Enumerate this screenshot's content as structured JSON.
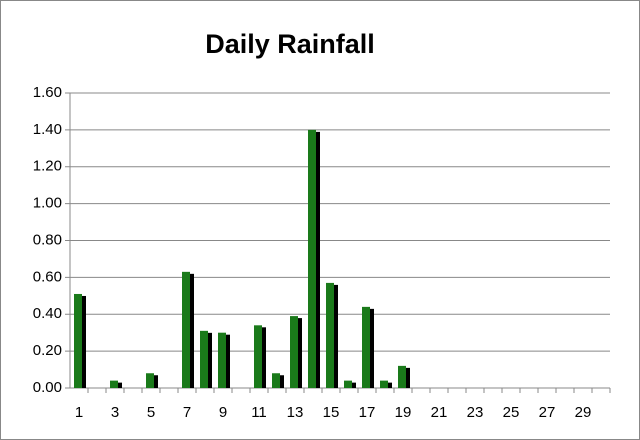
{
  "chart_data": {
    "type": "bar",
    "title": "Daily Rainfall",
    "categories": [
      "1",
      null,
      "3",
      null,
      "5",
      null,
      "7",
      null,
      "9",
      null,
      "11",
      null,
      "13",
      null,
      "15",
      null,
      "17",
      null,
      "19",
      null,
      "21",
      null,
      "23",
      null,
      "25",
      null,
      "27",
      null,
      "29",
      null
    ],
    "values": [
      0.51,
      0,
      0.04,
      0,
      0.08,
      0,
      0.63,
      0.31,
      0.3,
      0,
      0.34,
      0.08,
      0.39,
      1.4,
      0.57,
      0.04,
      0.44,
      0.04,
      0.12,
      0,
      0,
      0,
      0,
      0,
      0,
      0,
      0,
      0,
      0,
      0
    ],
    "color": "#1a7a1a",
    "shadow_color": "#000000",
    "ylim": [
      0,
      1.6
    ],
    "yticks": [
      {
        "value": 0,
        "label": "0.00"
      },
      {
        "value": 0.2,
        "label": "0.20"
      },
      {
        "value": 0.4,
        "label": "0.40"
      },
      {
        "value": 0.6,
        "label": "0.60"
      },
      {
        "value": 0.8,
        "label": "0.80"
      },
      {
        "value": 1.0,
        "label": "1.00"
      },
      {
        "value": 1.2,
        "label": "1.20"
      },
      {
        "value": 1.4,
        "label": "1.40"
      },
      {
        "value": 1.6,
        "label": "1.60"
      }
    ],
    "grid": true
  }
}
